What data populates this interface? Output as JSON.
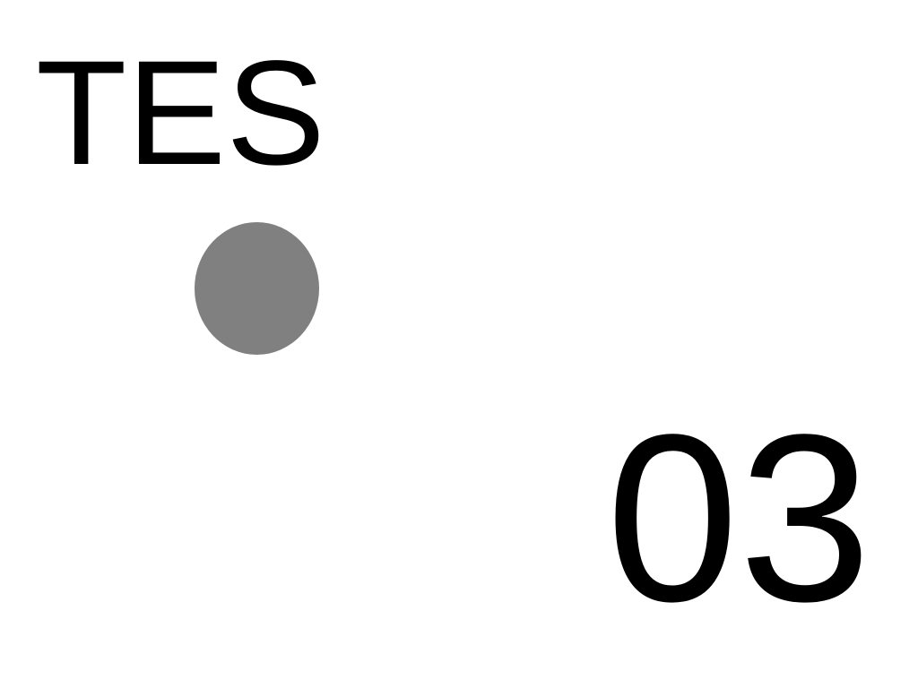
{
  "label": "TES",
  "number": "03",
  "dot": {
    "color": "#808080"
  }
}
